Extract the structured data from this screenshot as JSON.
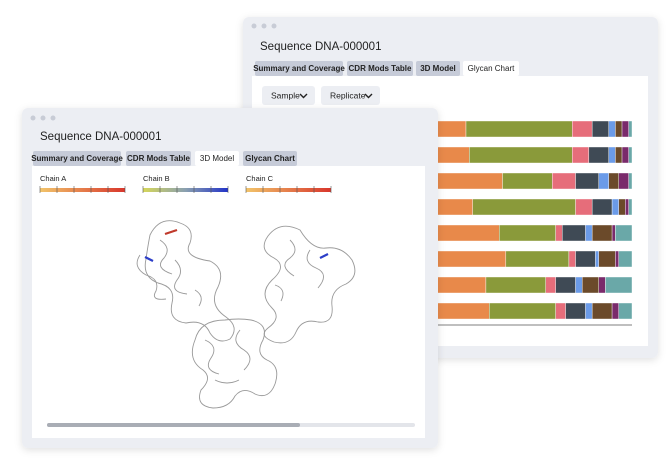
{
  "back_window": {
    "title": "Sequence DNA-000001",
    "tabs": [
      "Summary and Coverage",
      "CDR Mods Table",
      "3D Model",
      "Glycan Chart"
    ],
    "dropdowns": [
      "Sample",
      "Replicate"
    ],
    "glycan_chart": {
      "series": [
        {
          "color": "#e8894a",
          "values": [
            50,
            51,
            61,
            52,
            60,
            62,
            56,
            57
          ]
        },
        {
          "color": "#8a9a3a",
          "values": [
            32,
            31,
            15,
            31,
            17,
            19,
            18,
            20
          ]
        },
        {
          "color": "#e66d7a",
          "values": [
            6,
            5,
            7,
            5,
            2,
            2,
            3,
            3
          ]
        },
        {
          "color": "#3f4a55",
          "values": [
            5,
            6,
            7,
            6,
            7,
            6,
            6,
            6
          ]
        },
        {
          "color": "#6b9be8",
          "values": [
            2,
            2,
            3,
            2,
            2,
            1,
            2,
            2
          ]
        },
        {
          "color": "#6b4a2a",
          "values": [
            2,
            2,
            3,
            2,
            6,
            5,
            5,
            6
          ]
        },
        {
          "color": "#7a2a6b",
          "values": [
            2,
            2,
            3,
            1,
            1,
            1,
            2,
            2
          ]
        },
        {
          "color": "#6aa8a8",
          "values": [
            1,
            1,
            1,
            1,
            5,
            4,
            8,
            4
          ]
        }
      ]
    }
  },
  "front_window": {
    "title": "Sequence DNA-000001",
    "tabs": [
      "Summary and Coverage",
      "CDR Mods Table",
      "3D Model",
      "Glycan Chart"
    ],
    "legend": [
      "Chain A",
      "Chain B",
      "Chain C"
    ]
  }
}
